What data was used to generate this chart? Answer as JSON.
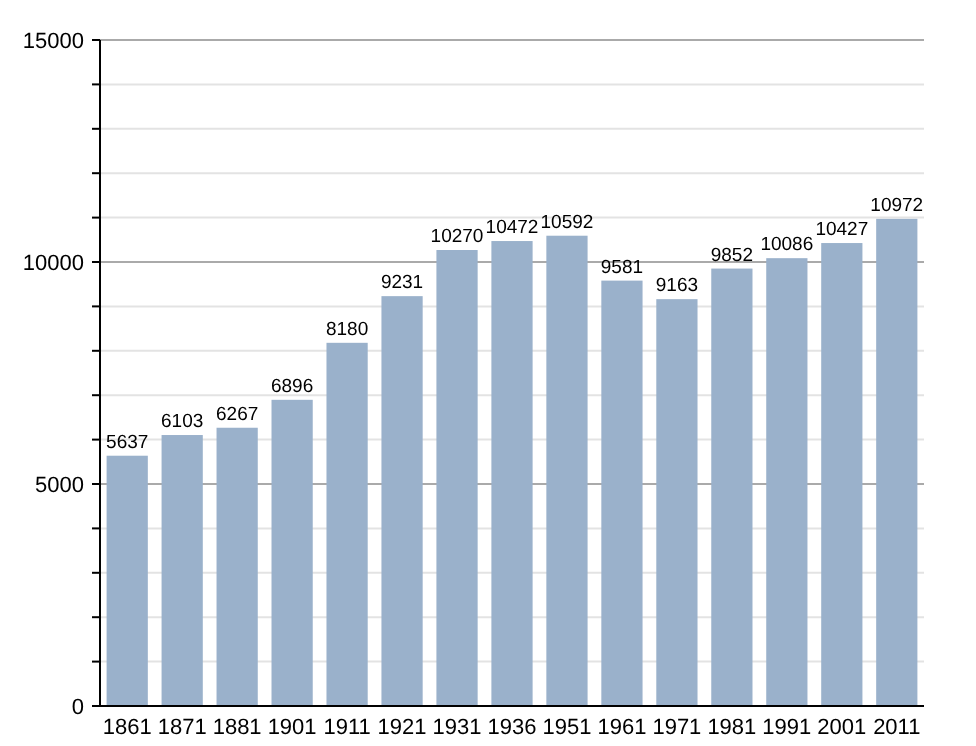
{
  "chart_data": {
    "type": "bar",
    "categories": [
      "1861",
      "1871",
      "1881",
      "1901",
      "1911",
      "1921",
      "1931",
      "1936",
      "1951",
      "1961",
      "1971",
      "1981",
      "1991",
      "2001",
      "2011"
    ],
    "values": [
      5637,
      6103,
      6267,
      6896,
      8180,
      9231,
      10270,
      10472,
      10592,
      9581,
      9163,
      9852,
      10086,
      10427,
      10972
    ],
    "color": "#9ab1cb",
    "ylim": [
      0,
      15000
    ],
    "yticks": [
      0,
      {
        "value": 1000,
        "label": null
      },
      {
        "value": 2000,
        "label": null
      },
      {
        "value": 3000,
        "label": null
      },
      {
        "value": 4000,
        "label": null
      },
      5000,
      {
        "value": 6000,
        "label": null
      },
      {
        "value": 7000,
        "label": null
      },
      {
        "value": 8000,
        "label": null
      },
      {
        "value": 9000,
        "label": null
      },
      10000,
      {
        "value": 11000,
        "label": null
      },
      {
        "value": 12000,
        "label": null
      },
      {
        "value": 13000,
        "label": null
      },
      {
        "value": 14000,
        "label": null
      },
      15000
    ],
    "grid": true,
    "data_labels": true
  }
}
